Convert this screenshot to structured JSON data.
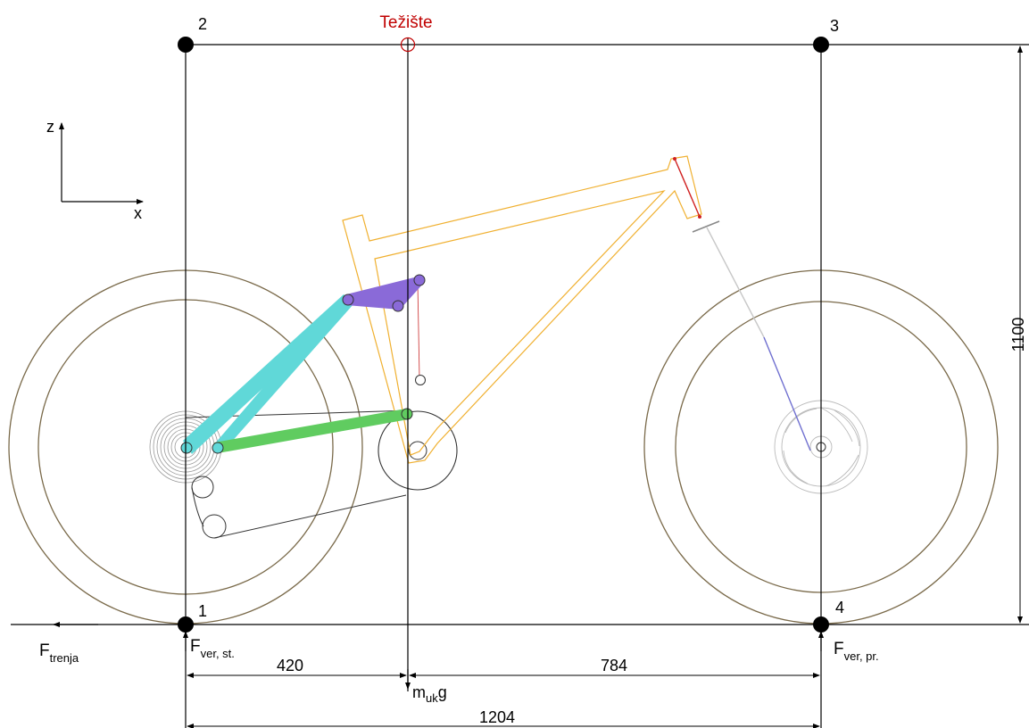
{
  "points": {
    "p1": "1",
    "p2": "2",
    "p3": "3",
    "p4": "4"
  },
  "center_of_gravity_label": "Težište",
  "axes": {
    "z": "z",
    "x": "x"
  },
  "forces": {
    "friction": {
      "main": "F",
      "sub": "trenja"
    },
    "rear_vertical": {
      "main": "F",
      "sub": "ver, st."
    },
    "front_vertical": {
      "main": "F",
      "sub": "ver, pr."
    },
    "weight": {
      "main": "m",
      "sub": "uk",
      "suffix": "g"
    }
  },
  "dimensions": {
    "rear_to_cg": "420",
    "cg_to_front": "784",
    "wheelbase": "1204",
    "height": "1100"
  },
  "colors": {
    "wheel": "#7a6a4a",
    "frame": "#f0b030",
    "rear_triangle": "#60d8d8",
    "chainstay_link": "#60cc60",
    "rocker": "#8a6ad8",
    "cg": "#c00000",
    "fork_lower": "#7070d0"
  }
}
